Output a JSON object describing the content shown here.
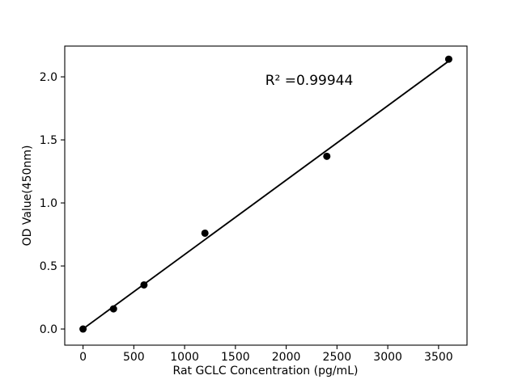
{
  "chart_data": {
    "type": "scatter",
    "title": "",
    "xlabel": "Rat GCLC Concentration (pg/mL)",
    "ylabel": "OD Value(450nm)",
    "annotation": "R² =0.99944",
    "r_squared": 0.99944,
    "x": [
      0,
      300,
      600,
      1200,
      2400,
      3600
    ],
    "y": [
      0.0,
      0.16,
      0.35,
      0.76,
      1.37,
      2.14
    ],
    "fit_line": {
      "slope": 0.00059,
      "intercept": 0.001,
      "x_start": 0,
      "x_end": 3600
    },
    "xticks": [
      0,
      500,
      1000,
      1500,
      2000,
      2500,
      3000,
      3500
    ],
    "yticks": [
      0.0,
      0.5,
      1.0,
      1.5,
      2.0
    ],
    "xlim": [
      -180,
      3780
    ],
    "ylim": [
      -0.128,
      2.244
    ],
    "grid": false,
    "legend": "none",
    "marker_color": "#000000",
    "line_color": "#000000",
    "axis_color": "#000000",
    "background_color": "#ffffff"
  }
}
